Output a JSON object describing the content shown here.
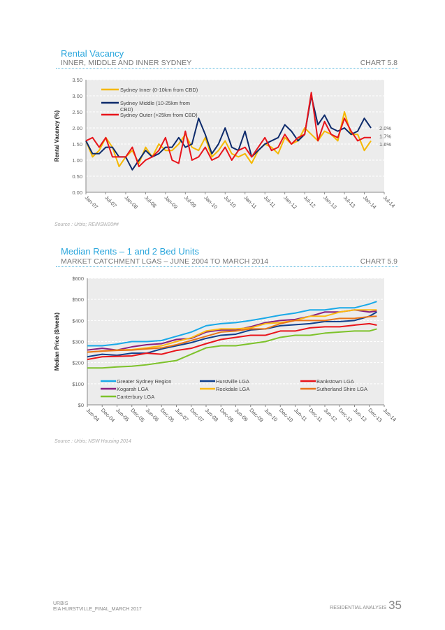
{
  "chart_data": [
    {
      "type": "line",
      "title": "Rental Vacancy",
      "subtitle": "INNER, MIDDLE AND INNER SYDNEY",
      "chart_number": "CHART 5.8",
      "ylabel": "Rental Vacancy (%)",
      "xlabel": "",
      "ylim": [
        0,
        3.5
      ],
      "yticks": [
        "0.00",
        "0.50",
        "1.00",
        "1.50",
        "2.00",
        "2.50",
        "3.00",
        "3.50"
      ],
      "xticks": [
        "Jan-07",
        "Jul-07",
        "Jan-08",
        "Jul-08",
        "Jan-09",
        "Jul-09",
        "Jan-10",
        "Jul-10",
        "Jan-11",
        "Jul-11",
        "Jan-12",
        "Jul-12",
        "Jan-13",
        "Jul-13",
        "Jan-14",
        "Jul-14"
      ],
      "x_months_since_jan07": [
        0,
        2,
        4,
        6,
        8,
        10,
        12,
        14,
        16,
        18,
        20,
        22,
        24,
        26,
        28,
        30,
        32,
        34,
        36,
        38,
        40,
        42,
        44,
        46,
        48,
        50,
        52,
        54,
        56,
        58,
        60,
        62,
        64,
        66,
        68,
        70,
        72,
        74,
        76,
        78,
        80,
        82,
        84,
        86
      ],
      "series": [
        {
          "name": "Sydney Inner (0-10km from CBD)",
          "color": "#f5b800",
          "end_label": "1.6%",
          "values": [
            1.6,
            1.1,
            1.3,
            1.7,
            1.4,
            0.8,
            1.1,
            1.3,
            0.9,
            1.4,
            1.1,
            1.5,
            1.3,
            1.3,
            1.5,
            1.8,
            1.4,
            1.3,
            1.7,
            1.1,
            1.3,
            1.6,
            1.2,
            1.1,
            1.2,
            0.9,
            1.3,
            1.5,
            1.4,
            1.2,
            1.7,
            1.5,
            1.6,
            2.0,
            1.8,
            1.6,
            1.9,
            1.8,
            1.6,
            2.5,
            1.8,
            1.8,
            1.3,
            1.6
          ]
        },
        {
          "name": "Sydney Middle (10-25km from CBD)",
          "color": "#0d2a6b",
          "end_label": "2.0%",
          "values": [
            1.6,
            1.2,
            1.2,
            1.4,
            1.4,
            1.1,
            1.1,
            0.7,
            1.0,
            1.3,
            1.1,
            1.2,
            1.4,
            1.4,
            1.7,
            1.4,
            1.5,
            2.3,
            1.8,
            1.2,
            1.5,
            2.0,
            1.4,
            1.3,
            1.9,
            1.1,
            1.3,
            1.5,
            1.6,
            1.7,
            2.1,
            1.9,
            1.6,
            1.8,
            3.0,
            2.1,
            2.4,
            2.0,
            1.9,
            2.0,
            1.8,
            1.9,
            2.3,
            2.0
          ]
        },
        {
          "name": "Sydney Outer (>25km from CBD)",
          "color": "#e8141b",
          "end_label": "1.7%",
          "values": [
            1.6,
            1.7,
            1.4,
            1.7,
            1.1,
            1.1,
            1.1,
            1.4,
            0.8,
            1.0,
            1.1,
            1.3,
            1.7,
            1.0,
            0.9,
            1.9,
            1.0,
            1.1,
            1.4,
            1.0,
            1.1,
            1.4,
            1.0,
            1.3,
            1.4,
            1.1,
            1.4,
            1.7,
            1.3,
            1.4,
            1.8,
            1.5,
            1.7,
            1.8,
            3.1,
            1.6,
            2.2,
            1.8,
            1.7,
            2.3,
            1.9,
            1.6,
            1.7,
            1.7
          ]
        }
      ],
      "legend_placement": "top-left",
      "source": "Source : Urbis; REINSW20##"
    },
    {
      "type": "line",
      "title": "Median Rents – 1 and 2 Bed Units",
      "subtitle": "MARKET CATCHMENT LGAS – JUNE 2004 TO MARCH 2014",
      "chart_number": "CHART 5.9",
      "ylabel": "Median Price ($/week)",
      "xlabel": "",
      "ylim": [
        0,
        600
      ],
      "yticks": [
        "$0",
        "$100",
        "$200",
        "$300",
        "$400",
        "$500",
        "$600"
      ],
      "xticks": [
        "Jun-04",
        "Dec-04",
        "Jun-05",
        "Dec-05",
        "Jun-06",
        "Dec-06",
        "Jun-07",
        "Dec-07",
        "Jun-08",
        "Dec-08",
        "Jun-09",
        "Dec-09",
        "Jun-10",
        "Dec-10",
        "Jun-11",
        "Dec-11",
        "Jun-12",
        "Dec-12",
        "Jun-13",
        "Dec-13",
        "Jun-14"
      ],
      "x_months_since_jun04": [
        0,
        6,
        12,
        18,
        24,
        30,
        36,
        42,
        48,
        54,
        60,
        66,
        72,
        78,
        84,
        90,
        96,
        102,
        108,
        114,
        117
      ],
      "series": [
        {
          "name": "Greater Sydney Region",
          "color": "#19a9e8",
          "values": [
            280,
            280,
            288,
            300,
            300,
            305,
            325,
            345,
            375,
            385,
            390,
            400,
            412,
            425,
            435,
            450,
            450,
            460,
            460,
            478,
            490
          ]
        },
        {
          "name": "Hurstville LGA",
          "color": "#0f3f8c",
          "values": [
            228,
            240,
            235,
            245,
            245,
            265,
            280,
            295,
            315,
            330,
            335,
            355,
            360,
            375,
            380,
            385,
            395,
            395,
            400,
            420,
            440
          ]
        },
        {
          "name": "Bankstown LGA",
          "color": "#e8141b",
          "values": [
            215,
            228,
            230,
            232,
            245,
            240,
            258,
            268,
            290,
            310,
            320,
            330,
            330,
            350,
            350,
            365,
            370,
            370,
            378,
            385,
            378
          ]
        },
        {
          "name": "Kogarah LGA",
          "color": "#8a1f7e",
          "values": [
            260,
            268,
            260,
            275,
            285,
            290,
            310,
            315,
            345,
            355,
            355,
            370,
            390,
            400,
            405,
            420,
            440,
            440,
            450,
            440,
            445
          ]
        },
        {
          "name": "Rockdale LGA",
          "color": "#fbb913",
          "values": [
            250,
            255,
            260,
            262,
            270,
            280,
            300,
            318,
            350,
            360,
            360,
            365,
            385,
            390,
            400,
            420,
            420,
            440,
            450,
            450,
            450
          ]
        },
        {
          "name": "Sutherland Shire LGA",
          "color": "#e8751a",
          "values": [
            250,
            255,
            258,
            260,
            265,
            270,
            285,
            305,
            325,
            345,
            350,
            360,
            360,
            385,
            400,
            400,
            400,
            410,
            410,
            418,
            420
          ]
        },
        {
          "name": "Canterbury LGA",
          "color": "#7dc22a",
          "values": [
            175,
            175,
            180,
            183,
            190,
            200,
            210,
            240,
            270,
            280,
            280,
            290,
            300,
            320,
            330,
            330,
            340,
            345,
            350,
            350,
            360
          ]
        }
      ],
      "legend_placement": "bottom-inside",
      "source": "Source : Urbis; NSW Housing 2014"
    }
  ],
  "footer": {
    "company": "URBIS",
    "document": "EIA HURSTVILLE_FINAL_MARCH 2017",
    "section": "RESIDENTIAL ANALYSIS",
    "page": "35"
  }
}
